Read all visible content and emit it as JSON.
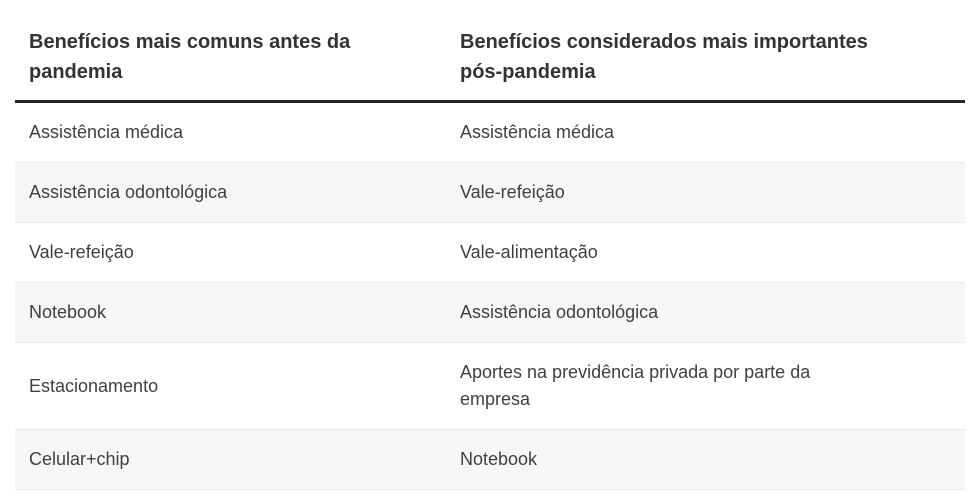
{
  "table": {
    "columns": {
      "before": "Benefícios mais comuns antes da\npandemia",
      "after": "Benefícios considerados mais importantes\npós-pandemia"
    },
    "rows": [
      {
        "before": "Assistência médica",
        "after": "Assistência médica"
      },
      {
        "before": "Assistência odontológica",
        "after": "Vale-refeição"
      },
      {
        "before": "Vale-refeição",
        "after": "Vale-alimentação"
      },
      {
        "before": "Notebook",
        "after": "Assistência odontológica"
      },
      {
        "before": "Estacionamento",
        "after": "Aportes na previdência privada por parte da\nempresa"
      },
      {
        "before": "Celular+chip",
        "after": "Notebook"
      }
    ],
    "colors": {
      "header_text": "#333333",
      "body_text": "#404040",
      "header_rule": "#262626",
      "stripe": "#f6f6f6",
      "row_border": "#e9e9e9",
      "background": "#ffffff"
    }
  },
  "chart_data": {
    "type": "table",
    "title": "",
    "columns": [
      "Benefícios mais comuns antes da pandemia",
      "Benefícios considerados mais importantes pós-pandemia"
    ],
    "rows": [
      [
        "Assistência médica",
        "Assistência médica"
      ],
      [
        "Assistência odontológica",
        "Vale-refeição"
      ],
      [
        "Vale-refeição",
        "Vale-alimentação"
      ],
      [
        "Notebook",
        "Assistência odontológica"
      ],
      [
        "Estacionamento",
        "Aportes na previdência privada por parte da empresa"
      ],
      [
        "Celular+chip",
        "Notebook"
      ]
    ],
    "layout": {
      "striped_rows": true,
      "stripe_starts_on_row": 2,
      "header_rule": "thick-dark"
    }
  }
}
